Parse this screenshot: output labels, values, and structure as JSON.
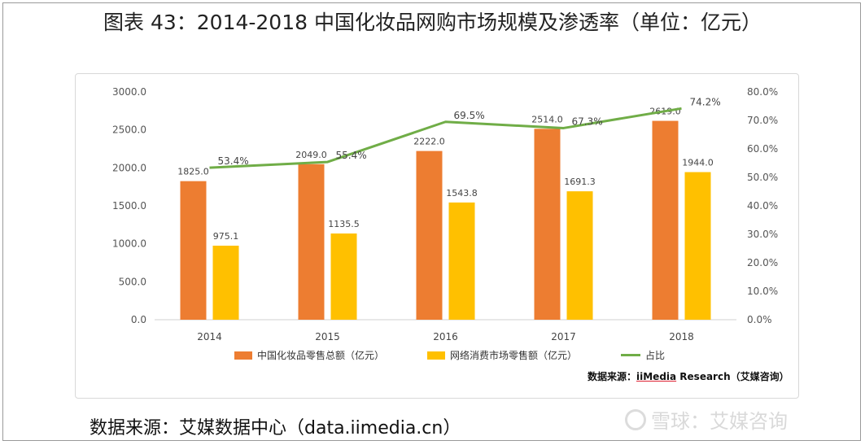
{
  "title": "图表 43：2014-2018 中国化妆品网购市场规模及渗透率（单位：亿元）",
  "chart_data": {
    "type": "bar",
    "categories": [
      "2014",
      "2015",
      "2016",
      "2017",
      "2018"
    ],
    "series": [
      {
        "name": "中国化妆品零售总额（亿元）",
        "type": "bar",
        "axis": "left",
        "values": [
          1825.0,
          2049.0,
          2222.0,
          2514.0,
          2619.0
        ],
        "labels": [
          "1825.0",
          "2049.0",
          "2222.0",
          "2514.0",
          "2619.0"
        ],
        "color": "#ED7D31"
      },
      {
        "name": "网络消费市场零售额（亿元）",
        "type": "bar",
        "axis": "left",
        "values": [
          975.1,
          1135.5,
          1543.8,
          1691.3,
          1944.0
        ],
        "labels": [
          "975.1",
          "1135.5",
          "1543.8",
          "1691.3",
          "1944.0"
        ],
        "color": "#FFC000"
      },
      {
        "name": "占比",
        "type": "line",
        "axis": "right",
        "values": [
          53.4,
          55.4,
          69.5,
          67.3,
          74.2
        ],
        "labels": [
          "53.4%",
          "55.4%",
          "69.5%",
          "67.3%",
          "74.2%"
        ],
        "color": "#70AD47"
      }
    ],
    "y_left": {
      "ylim": [
        0,
        3000
      ],
      "ticks": [
        "0.0",
        "500.0",
        "1000.0",
        "1500.0",
        "2000.0",
        "2500.0",
        "3000.0"
      ]
    },
    "y_right": {
      "ylim": [
        0,
        80
      ],
      "ticks": [
        "0.0%",
        "10.0%",
        "20.0%",
        "30.0%",
        "40.0%",
        "50.0%",
        "60.0%",
        "70.0%",
        "80.0%"
      ]
    },
    "grid": false,
    "legend_position": "bottom"
  },
  "source_note": {
    "prefix": "数据来源：",
    "link": "iiMedia",
    "suffix": " Research（艾媒咨询）"
  },
  "footer": "数据来源：艾媒数据中心（data.iimedia.cn）",
  "watermark": "雪球：艾媒咨询"
}
